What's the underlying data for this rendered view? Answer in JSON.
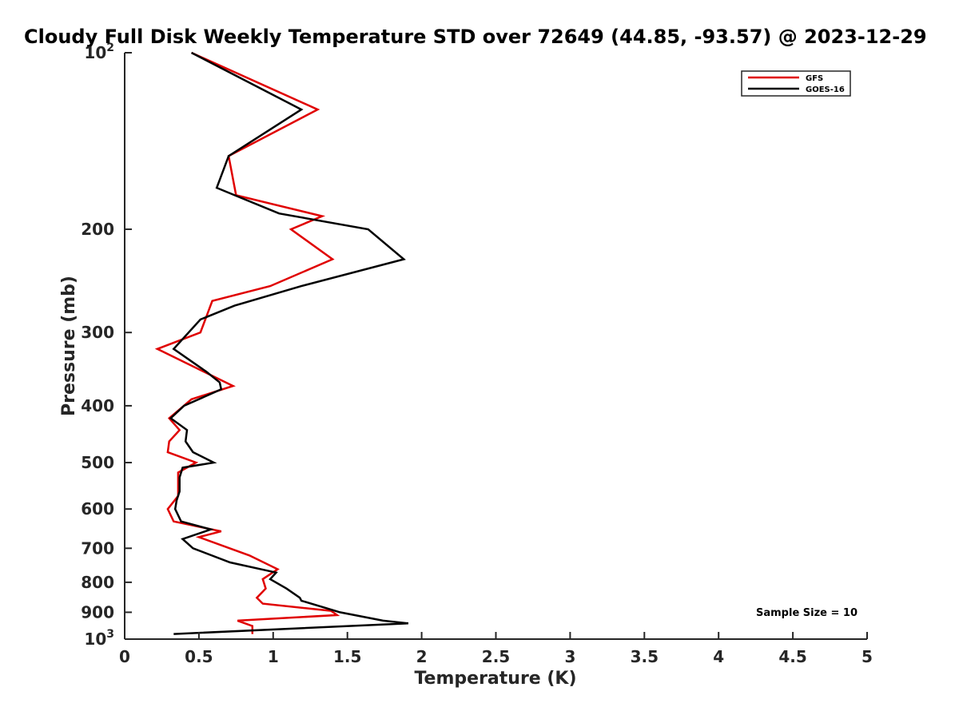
{
  "chart_data": {
    "type": "line",
    "title": "Cloudy Full Disk Weekly Temperature STD over 72649 (44.85, -93.57) @ 2023-12-29",
    "xlabel": "Temperature (K)",
    "ylabel": "Pressure (mb)",
    "xlim": [
      0,
      5
    ],
    "ylim": [
      100,
      1000
    ],
    "yscale": "log",
    "y_reversed": true,
    "grid": false,
    "legend_position": "top-right",
    "x_ticks": [
      0,
      0.5,
      1,
      1.5,
      2,
      2.5,
      3,
      3.5,
      4,
      4.5,
      5
    ],
    "x_tick_labels": [
      "0",
      "0.5",
      "1",
      "1.5",
      "2",
      "2.5",
      "3",
      "3.5",
      "4",
      "4.5",
      "5"
    ],
    "y_ticks": [
      100,
      200,
      300,
      400,
      500,
      600,
      700,
      800,
      900,
      1000
    ],
    "y_tick_labels": [
      {
        "base": "10",
        "exp": "2"
      },
      {
        "base": "200",
        "exp": ""
      },
      {
        "base": "300",
        "exp": ""
      },
      {
        "base": "400",
        "exp": ""
      },
      {
        "base": "500",
        "exp": ""
      },
      {
        "base": "600",
        "exp": ""
      },
      {
        "base": "700",
        "exp": ""
      },
      {
        "base": "800",
        "exp": ""
      },
      {
        "base": "900",
        "exp": ""
      },
      {
        "base": "10",
        "exp": "3"
      }
    ],
    "annotation": "Sample Size = 10",
    "series": [
      {
        "name": "GFS",
        "color": "#e00000",
        "points": [
          [
            0.45,
            100
          ],
          [
            1.3,
            125
          ],
          [
            0.7,
            150
          ],
          [
            0.75,
            175
          ],
          [
            1.33,
            190
          ],
          [
            1.12,
            200
          ],
          [
            1.4,
            225
          ],
          [
            0.98,
            250
          ],
          [
            0.59,
            265
          ],
          [
            0.51,
            300
          ],
          [
            0.22,
            320
          ],
          [
            0.73,
            370
          ],
          [
            0.45,
            390
          ],
          [
            0.3,
            420
          ],
          [
            0.37,
            440
          ],
          [
            0.3,
            460
          ],
          [
            0.29,
            480
          ],
          [
            0.48,
            500
          ],
          [
            0.36,
            520
          ],
          [
            0.36,
            570
          ],
          [
            0.29,
            600
          ],
          [
            0.33,
            630
          ],
          [
            0.65,
            655
          ],
          [
            0.5,
            670
          ],
          [
            0.84,
            720
          ],
          [
            1.03,
            760
          ],
          [
            0.93,
            790
          ],
          [
            0.95,
            820
          ],
          [
            0.89,
            850
          ],
          [
            0.93,
            870
          ],
          [
            1.39,
            895
          ],
          [
            1.43,
            910
          ],
          [
            0.76,
            930
          ],
          [
            0.86,
            950
          ],
          [
            0.86,
            980
          ]
        ]
      },
      {
        "name": "GOES-16",
        "color": "#000000",
        "points": [
          [
            0.45,
            100
          ],
          [
            1.19,
            125
          ],
          [
            0.7,
            150
          ],
          [
            0.62,
            170
          ],
          [
            1.04,
            188
          ],
          [
            1.64,
            200
          ],
          [
            1.88,
            225
          ],
          [
            1.19,
            250
          ],
          [
            0.74,
            270
          ],
          [
            0.51,
            285
          ],
          [
            0.33,
            320
          ],
          [
            0.55,
            350
          ],
          [
            0.64,
            365
          ],
          [
            0.65,
            375
          ],
          [
            0.4,
            400
          ],
          [
            0.31,
            420
          ],
          [
            0.42,
            440
          ],
          [
            0.41,
            460
          ],
          [
            0.46,
            480
          ],
          [
            0.6,
            500
          ],
          [
            0.39,
            510
          ],
          [
            0.37,
            530
          ],
          [
            0.37,
            560
          ],
          [
            0.35,
            580
          ],
          [
            0.34,
            600
          ],
          [
            0.38,
            630
          ],
          [
            0.58,
            650
          ],
          [
            0.39,
            675
          ],
          [
            0.46,
            700
          ],
          [
            0.71,
            740
          ],
          [
            1.02,
            770
          ],
          [
            0.98,
            790
          ],
          [
            1.09,
            820
          ],
          [
            1.18,
            850
          ],
          [
            1.19,
            860
          ],
          [
            1.45,
            900
          ],
          [
            1.74,
            930
          ],
          [
            1.91,
            940
          ],
          [
            0.33,
            980
          ]
        ]
      }
    ]
  }
}
